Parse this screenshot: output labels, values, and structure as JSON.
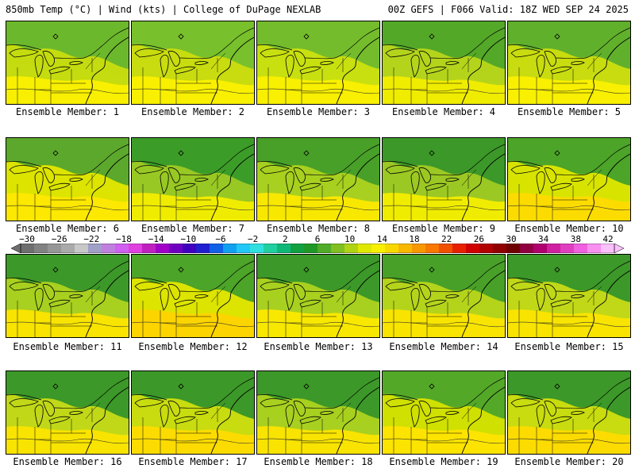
{
  "header": {
    "left_title": "850mb Temp (°C) | Wind (kts) | College of DuPage NEXLAB",
    "right_title": "00Z GEFS | F066 Valid: 18Z WED SEP 24 2025"
  },
  "panels": [
    {
      "caption": "Ensemble Member: 1",
      "base": "#c4dc10",
      "north": "#6cb82c",
      "south": "#f8f000"
    },
    {
      "caption": "Ensemble Member: 2",
      "base": "#c8dc10",
      "north": "#78c02c",
      "south": "#f8f000"
    },
    {
      "caption": "Ensemble Member: 3",
      "base": "#c8e010",
      "north": "#74bc2c",
      "south": "#f8f000"
    },
    {
      "caption": "Ensemble Member: 4",
      "base": "#b4d41c",
      "north": "#54a828",
      "south": "#f0ec00"
    },
    {
      "caption": "Ensemble Member: 5",
      "base": "#c8dc10",
      "north": "#60b02c",
      "south": "#f8f000"
    },
    {
      "caption": "Ensemble Member: 6",
      "base": "#dce400",
      "north": "#5ca82c",
      "south": "#fce800"
    },
    {
      "caption": "Ensemble Member: 7",
      "base": "#98c824",
      "north": "#3c9c28",
      "south": "#f0ec00"
    },
    {
      "caption": "Ensemble Member: 8",
      "base": "#a8d020",
      "north": "#48a028",
      "south": "#f8e800"
    },
    {
      "caption": "Ensemble Member: 9",
      "base": "#9cc824",
      "north": "#3c9828",
      "south": "#f0ec00"
    },
    {
      "caption": "Ensemble Member: 10",
      "base": "#d8e400",
      "north": "#4ca428",
      "south": "#fcdc00"
    },
    {
      "caption": "Ensemble Member: 11",
      "base": "#a8d020",
      "north": "#3c9828",
      "south": "#f8e400"
    },
    {
      "caption": "Ensemble Member: 12",
      "base": "#dce400",
      "north": "#4ca428",
      "south": "#fcd400"
    },
    {
      "caption": "Ensemble Member: 13",
      "base": "#a8d020",
      "north": "#3c9828",
      "south": "#f8e800"
    },
    {
      "caption": "Ensemble Member: 14",
      "base": "#b4d41c",
      "north": "#48a028",
      "south": "#f8e400"
    },
    {
      "caption": "Ensemble Member: 15",
      "base": "#c0d818",
      "north": "#3c9828",
      "south": "#f8e400"
    },
    {
      "caption": "Ensemble Member: 16",
      "base": "#c0d818",
      "north": "#3c9828",
      "south": "#f8e400"
    },
    {
      "caption": "Ensemble Member: 17",
      "base": "#c8dc10",
      "north": "#3c9828",
      "south": "#fcdc00"
    },
    {
      "caption": "Ensemble Member: 18",
      "base": "#a8d020",
      "north": "#3c9828",
      "south": "#f8e400"
    },
    {
      "caption": "Ensemble Member: 19",
      "base": "#d0e000",
      "north": "#54a828",
      "south": "#fce400"
    },
    {
      "caption": "Ensemble Member: 20",
      "base": "#c8dc10",
      "north": "#3c9828",
      "south": "#fcdc00"
    }
  ],
  "colorbar": {
    "labels": [
      "−30",
      "−26",
      "−22",
      "−18",
      "−14",
      "−10",
      "−6",
      "−2",
      "2",
      "6",
      "10",
      "14",
      "18",
      "22",
      "26",
      "30",
      "34",
      "38",
      "42"
    ],
    "colors": [
      "#6e6e6e",
      "#828282",
      "#969696",
      "#aaaaaa",
      "#c8c8c8",
      "#a0a0c8",
      "#c080e0",
      "#d060f0",
      "#e040e0",
      "#c020c0",
      "#a000c8",
      "#7000c0",
      "#4000c0",
      "#2020d0",
      "#1060e8",
      "#10a0f0",
      "#20c8f8",
      "#30e0e0",
      "#20d0a0",
      "#10b878",
      "#10a040",
      "#209828",
      "#50ac28",
      "#80c020",
      "#b0d414",
      "#e0e800",
      "#f8f000",
      "#f8d800",
      "#f8b800",
      "#f89800",
      "#f87800",
      "#f05000",
      "#e82000",
      "#d00000",
      "#b00000",
      "#900000",
      "#700000",
      "#900040",
      "#b00070",
      "#d020a0",
      "#e040c0",
      "#f060e0",
      "#f890f0",
      "#fcc0fc"
    ]
  }
}
